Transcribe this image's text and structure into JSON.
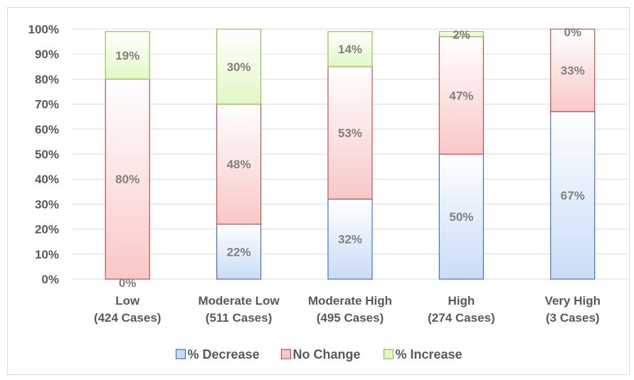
{
  "chart_data": {
    "type": "bar",
    "stacked": true,
    "percent": true,
    "categories": [
      [
        "Low",
        "(424 Cases)"
      ],
      [
        "Moderate Low",
        "(511 Cases)"
      ],
      [
        "Moderate High",
        "(495 Cases)"
      ],
      [
        "High",
        "(274 Cases)"
      ],
      [
        "Very High",
        "(3 Cases)"
      ]
    ],
    "series": [
      {
        "name": "% Decrease",
        "values": [
          0,
          22,
          32,
          50,
          67
        ],
        "labels": [
          "0%",
          "22%",
          "32%",
          "50%",
          "67%"
        ],
        "fill": "#c9dcf7",
        "stroke": "#4472c4"
      },
      {
        "name": "No Change",
        "values": [
          80,
          48,
          53,
          47,
          33
        ],
        "labels": [
          "80%",
          "48%",
          "53%",
          "47%",
          "33%"
        ],
        "fill": "#f9c8c8",
        "stroke": "#c0504d"
      },
      {
        "name": "% Increase",
        "values": [
          19,
          30,
          14,
          2,
          0
        ],
        "labels": [
          "19%",
          "30%",
          "14%",
          "2%",
          "0%"
        ],
        "fill": "#e2f7c6",
        "stroke": "#9bbb59"
      }
    ],
    "y_ticks": [
      "0%",
      "10%",
      "20%",
      "30%",
      "40%",
      "50%",
      "60%",
      "70%",
      "80%",
      "90%",
      "100%"
    ],
    "ylim": [
      0,
      100
    ],
    "grid": true,
    "legend": "bottom",
    "title": "",
    "xlabel": "",
    "ylabel": ""
  }
}
